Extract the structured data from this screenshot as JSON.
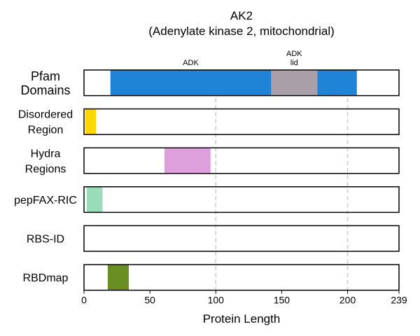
{
  "chart_data": {
    "type": "bar",
    "title_line1": "AK2",
    "title_line2": "(Adenylate kinase 2, mitochondrial)",
    "xlabel": "Protein Length",
    "xlim": [
      0,
      239
    ],
    "xticks": [
      {
        "value": 0,
        "label": "0"
      },
      {
        "value": 50,
        "label": "50"
      },
      {
        "value": 100,
        "label": "100"
      },
      {
        "value": 150,
        "label": "150"
      },
      {
        "value": 200,
        "label": "200"
      },
      {
        "value": 239,
        "label": "239"
      }
    ],
    "gridlines": [
      100,
      200
    ],
    "grid_style": "dashed",
    "rows": [
      {
        "key": "pfam",
        "label_lines": [
          "Pfam",
          "Domains"
        ],
        "segments": [
          {
            "start": 20,
            "end": 142,
            "color": "#1f84d6",
            "label_lines": [
              "ADK"
            ]
          },
          {
            "start": 142,
            "end": 177,
            "color": "#a99fa8",
            "label_lines": [
              "ADK",
              "lid"
            ]
          },
          {
            "start": 177,
            "end": 207,
            "color": "#1f84d6",
            "label_lines": []
          }
        ]
      },
      {
        "key": "disordered",
        "label_lines": [
          "Disordered",
          "Region"
        ],
        "segments": [
          {
            "start": 1,
            "end": 9,
            "color": "#ffd700",
            "label_lines": []
          }
        ]
      },
      {
        "key": "hydra",
        "label_lines": [
          "Hydra",
          "Regions"
        ],
        "segments": [
          {
            "start": 61,
            "end": 96,
            "color": "#dda0dd",
            "label_lines": []
          }
        ]
      },
      {
        "key": "pepfax",
        "label_lines": [
          "pepFAX-RIC"
        ],
        "segments": [
          {
            "start": 2,
            "end": 14,
            "color": "#98dcb9",
            "label_lines": []
          }
        ]
      },
      {
        "key": "rbsid",
        "label_lines": [
          "RBS-ID"
        ],
        "segments": []
      },
      {
        "key": "rbdmap",
        "label_lines": [
          "RBDmap"
        ],
        "segments": [
          {
            "start": 18,
            "end": 34,
            "color": "#6b8e23",
            "label_lines": []
          }
        ]
      }
    ]
  }
}
